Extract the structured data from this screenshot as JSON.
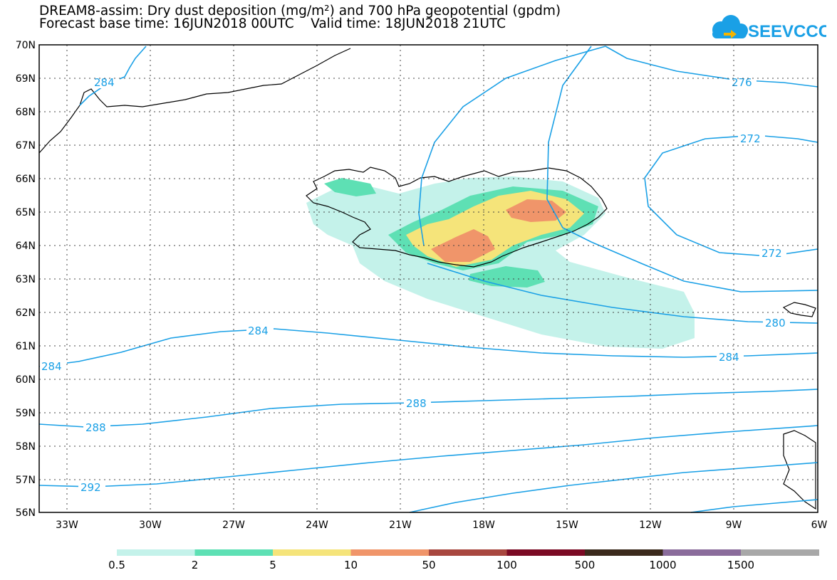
{
  "header": {
    "title_line1": "DREAM8-assim: Dry dust deposition (mg/m²) and 700 hPa geopotential (gpdm)",
    "title_line2": "Forecast base time: 16JUN2018 00UTC    Valid time: 18JUN2018 21UTC",
    "logo_text": "SEEVCCC",
    "logo_color": "#1aa0e6"
  },
  "map": {
    "lon_range": [
      -34,
      -6
    ],
    "lat_range": [
      56,
      70
    ],
    "lat_labels": [
      "70N",
      "69N",
      "68N",
      "67N",
      "66N",
      "65N",
      "64N",
      "63N",
      "62N",
      "61N",
      "60N",
      "59N",
      "58N",
      "57N",
      "56N"
    ],
    "lon_labels": [
      "33W",
      "30W",
      "27W",
      "24W",
      "21W",
      "18W",
      "15W",
      "12W",
      "9W",
      "6W"
    ],
    "contour_color": "#1aa0e6",
    "contour_labels": [
      "284",
      "276",
      "272",
      "272",
      "284",
      "280",
      "284",
      "284",
      "288",
      "288",
      "292"
    ]
  },
  "legend": {
    "colors": [
      "#c4f2ea",
      "#5ee0b4",
      "#f5e47a",
      "#f0956a",
      "#a8473f",
      "#7b0a24",
      "#3b2a1c",
      "#8a6c9b",
      "#a8a8a8"
    ],
    "labels": [
      "0.5",
      "2",
      "5",
      "10",
      "50",
      "100",
      "500",
      "1000",
      "1500"
    ]
  }
}
